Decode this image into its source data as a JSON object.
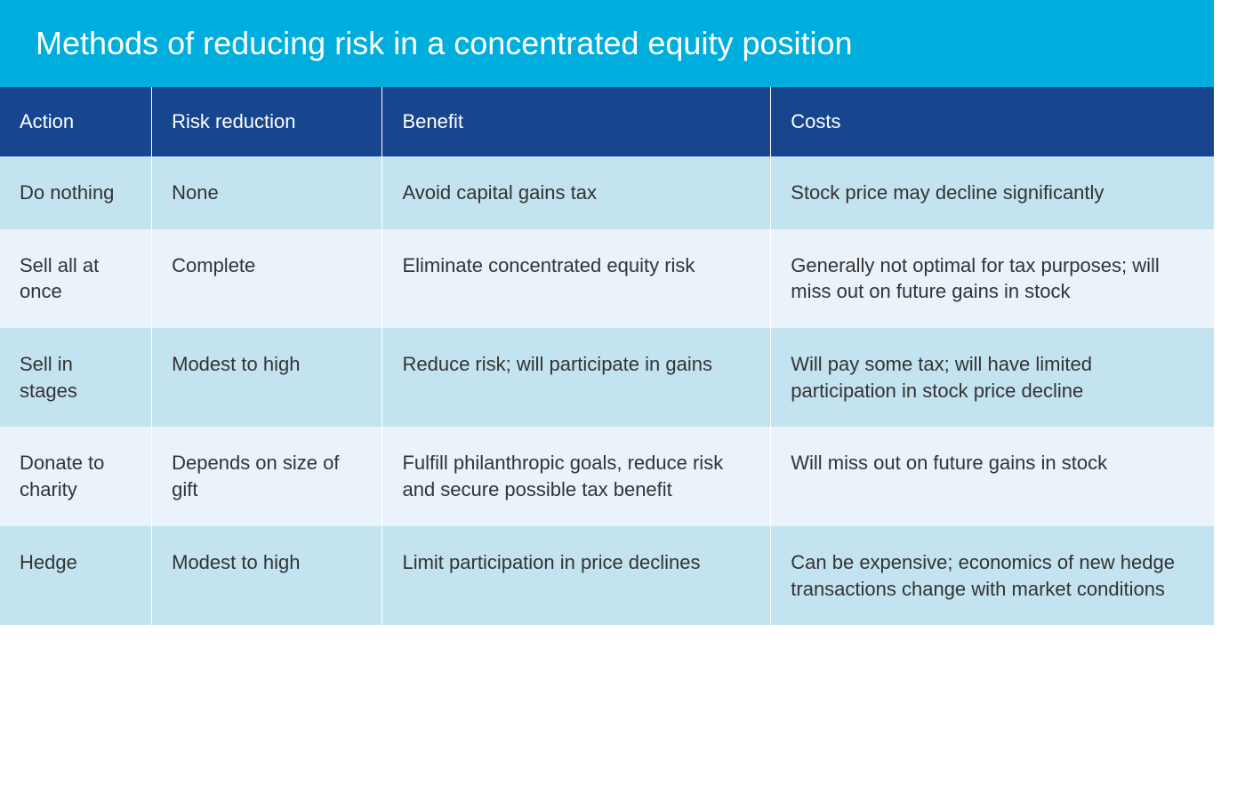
{
  "title": "Methods of reducing risk in a concentrated equity position",
  "style": {
    "title_bg": "#00aede",
    "title_color": "#ffffff",
    "title_fontsize": "36px",
    "header_bg": "#17468e",
    "header_color": "#ffffff",
    "header_fontsize": "22px",
    "cell_fontsize": "22px",
    "text_color": "#333333",
    "row_odd_bg": "#c4e3f1",
    "row_even_bg": "#eaf3fa",
    "border_color": "#ffffff"
  },
  "columns": [
    {
      "key": "action",
      "label": "Action",
      "width": "12.5%"
    },
    {
      "key": "risk",
      "label": "Risk reduction",
      "width": "19%"
    },
    {
      "key": "benefit",
      "label": "Benefit",
      "width": "32%"
    },
    {
      "key": "costs",
      "label": "Costs",
      "width": "36.5%"
    }
  ],
  "rows": [
    {
      "action": "Do nothing",
      "risk": "None",
      "benefit": "Avoid capital gains tax",
      "costs": "Stock price may decline significantly"
    },
    {
      "action": "Sell all at once",
      "risk": "Complete",
      "benefit": "Eliminate concentrated equity risk",
      "costs": "Generally not optimal for tax purposes; will miss out on future gains in stock"
    },
    {
      "action": "Sell in stages",
      "risk": "Modest to high",
      "benefit": "Reduce risk; will participate in gains",
      "costs": "Will pay some tax; will have limited participation in stock price decline"
    },
    {
      "action": "Donate to charity",
      "risk": "Depends on size of gift",
      "benefit": "Fulfill philanthropic goals, reduce risk and secure possible tax benefit",
      "costs": "Will miss out on future gains in stock"
    },
    {
      "action": "Hedge",
      "risk": "Modest to high",
      "benefit": "Limit participation in price declines",
      "costs": "Can be expensive; economics of new hedge transactions change with market conditions"
    }
  ]
}
